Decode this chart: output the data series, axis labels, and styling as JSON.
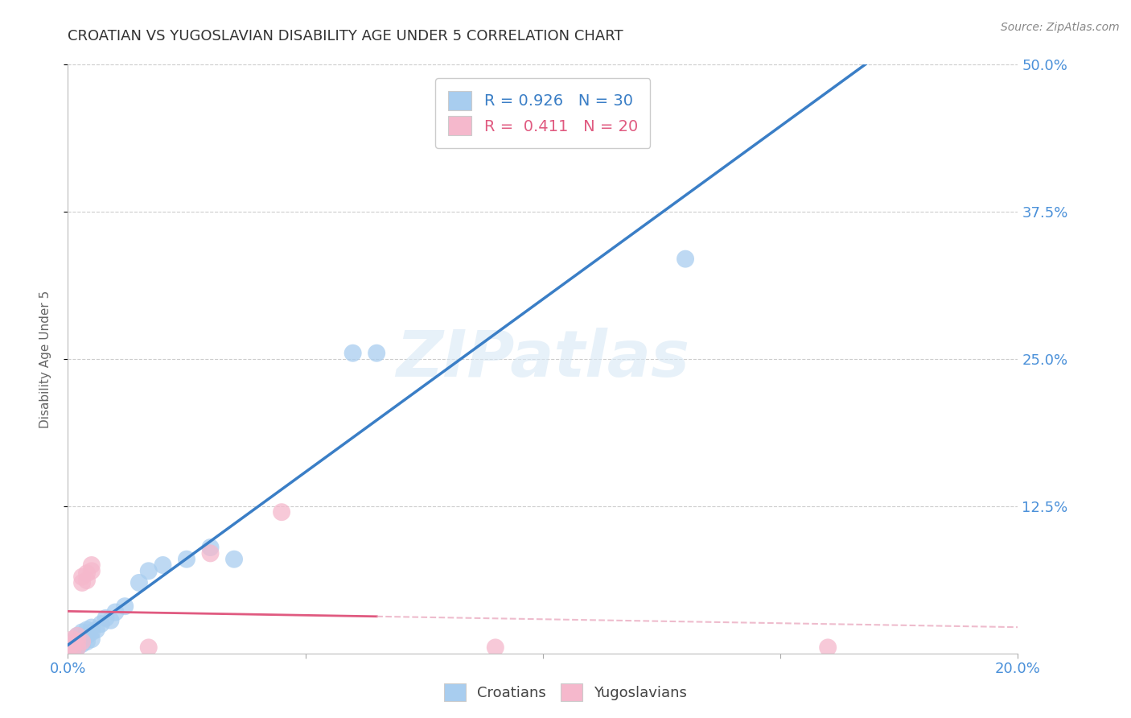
{
  "title": "CROATIAN VS YUGOSLAVIAN DISABILITY AGE UNDER 5 CORRELATION CHART",
  "source": "Source: ZipAtlas.com",
  "ylabel": "Disability Age Under 5",
  "watermark": "ZIPatlas",
  "legend_cr": "R = 0.926   N = 30",
  "legend_yu": "R =  0.411   N = 20",
  "croatian_color": "#A8CDEF",
  "yugoslavian_color": "#F5B8CC",
  "croatian_line_color": "#3A7EC6",
  "yugoslavian_line_color": "#E05A80",
  "yugoslavian_dash_color": "#E8A0B8",
  "croatian_scatter": [
    [
      0.0,
      0.005
    ],
    [
      0.001,
      0.005
    ],
    [
      0.001,
      0.008
    ],
    [
      0.002,
      0.005
    ],
    [
      0.002,
      0.01
    ],
    [
      0.002,
      0.015
    ],
    [
      0.003,
      0.008
    ],
    [
      0.003,
      0.012
    ],
    [
      0.003,
      0.018
    ],
    [
      0.004,
      0.01
    ],
    [
      0.004,
      0.015
    ],
    [
      0.004,
      0.02
    ],
    [
      0.005,
      0.012
    ],
    [
      0.005,
      0.018
    ],
    [
      0.005,
      0.022
    ],
    [
      0.006,
      0.02
    ],
    [
      0.007,
      0.025
    ],
    [
      0.008,
      0.03
    ],
    [
      0.009,
      0.028
    ],
    [
      0.01,
      0.035
    ],
    [
      0.012,
      0.04
    ],
    [
      0.015,
      0.06
    ],
    [
      0.017,
      0.07
    ],
    [
      0.02,
      0.075
    ],
    [
      0.025,
      0.08
    ],
    [
      0.03,
      0.09
    ],
    [
      0.035,
      0.08
    ],
    [
      0.06,
      0.255
    ],
    [
      0.065,
      0.255
    ],
    [
      0.13,
      0.335
    ]
  ],
  "yugoslavian_scatter": [
    [
      0.0,
      0.002
    ],
    [
      0.0,
      0.005
    ],
    [
      0.001,
      0.003
    ],
    [
      0.001,
      0.008
    ],
    [
      0.001,
      0.012
    ],
    [
      0.002,
      0.005
    ],
    [
      0.002,
      0.01
    ],
    [
      0.002,
      0.015
    ],
    [
      0.003,
      0.01
    ],
    [
      0.003,
      0.06
    ],
    [
      0.003,
      0.065
    ],
    [
      0.004,
      0.062
    ],
    [
      0.004,
      0.068
    ],
    [
      0.005,
      0.07
    ],
    [
      0.005,
      0.075
    ],
    [
      0.017,
      0.005
    ],
    [
      0.03,
      0.085
    ],
    [
      0.045,
      0.12
    ],
    [
      0.09,
      0.005
    ],
    [
      0.16,
      0.005
    ]
  ],
  "xmin": 0.0,
  "xmax": 0.2,
  "ymin": 0.0,
  "ymax": 0.5,
  "ytick_vals": [
    0.125,
    0.25,
    0.375,
    0.5
  ],
  "ytick_labels": [
    "12.5%",
    "25.0%",
    "37.5%",
    "50.0%"
  ],
  "background_color": "#FFFFFF",
  "grid_color": "#CCCCCC"
}
